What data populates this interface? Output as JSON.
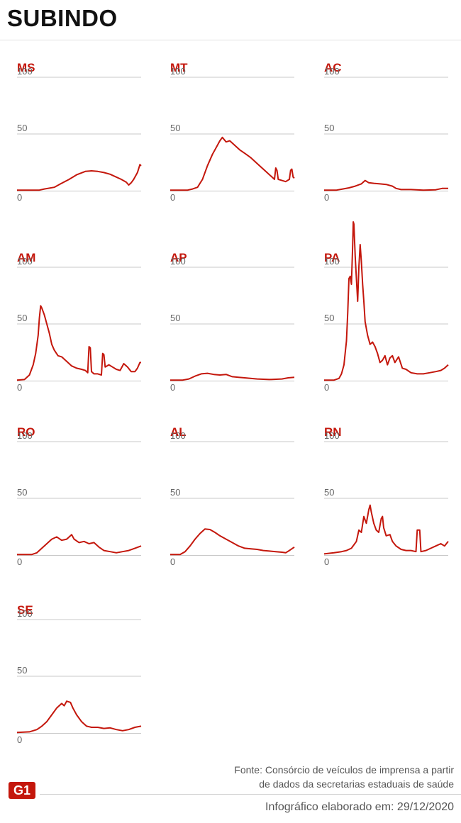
{
  "title": "SUBINDO",
  "footer": {
    "source_line1": "Fonte: Consórcio de veículos de imprensa a partir",
    "source_line2": "de dados da secretarias estaduais de saúde",
    "date": "Infográfico elaborado em: 29/12/2020",
    "logo": "G1"
  },
  "colors": {
    "line": "#c4170c",
    "label": "#c4170c",
    "grid": "#c8c8c8",
    "tick": "#666666"
  },
  "chart_data": [
    {
      "type": "line",
      "title": "MS",
      "ylim": [
        0,
        100
      ],
      "yticks": [
        "0",
        "50",
        "100"
      ],
      "points": [
        [
          0,
          0.5
        ],
        [
          0.1,
          0.5
        ],
        [
          0.18,
          0.5
        ],
        [
          0.22,
          1.5
        ],
        [
          0.3,
          3
        ],
        [
          0.35,
          6
        ],
        [
          0.42,
          10
        ],
        [
          0.48,
          14
        ],
        [
          0.55,
          17
        ],
        [
          0.6,
          17.5
        ],
        [
          0.65,
          17
        ],
        [
          0.7,
          16
        ],
        [
          0.75,
          14.5
        ],
        [
          0.8,
          12
        ],
        [
          0.84,
          10
        ],
        [
          0.88,
          7.5
        ],
        [
          0.9,
          5
        ],
        [
          0.92,
          7
        ],
        [
          0.94,
          10
        ],
        [
          0.97,
          16
        ],
        [
          0.99,
          23
        ],
        [
          1,
          22
        ]
      ]
    },
    {
      "type": "line",
      "title": "MT",
      "ylim": [
        0,
        100
      ],
      "yticks": [
        "0",
        "50",
        "100"
      ],
      "points": [
        [
          0,
          0.5
        ],
        [
          0.14,
          0.5
        ],
        [
          0.18,
          1.5
        ],
        [
          0.22,
          3
        ],
        [
          0.26,
          10
        ],
        [
          0.3,
          22
        ],
        [
          0.34,
          32
        ],
        [
          0.37,
          38
        ],
        [
          0.4,
          44
        ],
        [
          0.42,
          47
        ],
        [
          0.45,
          43
        ],
        [
          0.48,
          44
        ],
        [
          0.52,
          40
        ],
        [
          0.56,
          36
        ],
        [
          0.6,
          33
        ],
        [
          0.65,
          29
        ],
        [
          0.7,
          24
        ],
        [
          0.74,
          20
        ],
        [
          0.78,
          16
        ],
        [
          0.82,
          12
        ],
        [
          0.84,
          10
        ],
        [
          0.85,
          20
        ],
        [
          0.86,
          18
        ],
        [
          0.87,
          10
        ],
        [
          0.9,
          9
        ],
        [
          0.93,
          8
        ],
        [
          0.96,
          10
        ],
        [
          0.97,
          18
        ],
        [
          0.98,
          19
        ],
        [
          0.99,
          12
        ],
        [
          1,
          11
        ]
      ]
    },
    {
      "type": "line",
      "title": "AC",
      "ylim": [
        0,
        100
      ],
      "yticks": [
        "0",
        "50",
        "100"
      ],
      "points": [
        [
          0,
          0.5
        ],
        [
          0.1,
          0.5
        ],
        [
          0.15,
          1.5
        ],
        [
          0.2,
          2.5
        ],
        [
          0.25,
          4
        ],
        [
          0.3,
          6
        ],
        [
          0.33,
          9
        ],
        [
          0.36,
          7
        ],
        [
          0.4,
          6.5
        ],
        [
          0.45,
          6
        ],
        [
          0.5,
          5.5
        ],
        [
          0.55,
          4
        ],
        [
          0.58,
          2
        ],
        [
          0.62,
          1
        ],
        [
          0.7,
          1
        ],
        [
          0.8,
          0.5
        ],
        [
          0.9,
          0.8
        ],
        [
          0.95,
          2
        ],
        [
          1,
          2
        ]
      ]
    },
    {
      "type": "line",
      "title": "AM",
      "ylim": [
        0,
        100
      ],
      "yticks": [
        "0",
        "50",
        "100"
      ],
      "points": [
        [
          0,
          0.5
        ],
        [
          0.06,
          1
        ],
        [
          0.1,
          5
        ],
        [
          0.13,
          14
        ],
        [
          0.15,
          24
        ],
        [
          0.17,
          40
        ],
        [
          0.18,
          55
        ],
        [
          0.19,
          66
        ],
        [
          0.2,
          64
        ],
        [
          0.22,
          58
        ],
        [
          0.24,
          50
        ],
        [
          0.26,
          42
        ],
        [
          0.28,
          32
        ],
        [
          0.3,
          27
        ],
        [
          0.33,
          22
        ],
        [
          0.36,
          21
        ],
        [
          0.4,
          17
        ],
        [
          0.44,
          13
        ],
        [
          0.48,
          11
        ],
        [
          0.52,
          10
        ],
        [
          0.55,
          9
        ],
        [
          0.57,
          7
        ],
        [
          0.58,
          30
        ],
        [
          0.59,
          29
        ],
        [
          0.6,
          8
        ],
        [
          0.62,
          6
        ],
        [
          0.65,
          6
        ],
        [
          0.68,
          5
        ],
        [
          0.69,
          24
        ],
        [
          0.7,
          23
        ],
        [
          0.71,
          12
        ],
        [
          0.74,
          14
        ],
        [
          0.77,
          12
        ],
        [
          0.8,
          10
        ],
        [
          0.83,
          9
        ],
        [
          0.86,
          15
        ],
        [
          0.89,
          12
        ],
        [
          0.92,
          8
        ],
        [
          0.95,
          8
        ],
        [
          0.97,
          11
        ],
        [
          0.99,
          16
        ],
        [
          1,
          16
        ]
      ]
    },
    {
      "type": "line",
      "title": "AP",
      "ylim": [
        0,
        100
      ],
      "yticks": [
        "0",
        "50",
        "100"
      ],
      "points": [
        [
          0,
          0.5
        ],
        [
          0.1,
          0.5
        ],
        [
          0.15,
          1.5
        ],
        [
          0.2,
          4
        ],
        [
          0.25,
          6
        ],
        [
          0.3,
          6.5
        ],
        [
          0.35,
          5.5
        ],
        [
          0.4,
          5
        ],
        [
          0.45,
          5.5
        ],
        [
          0.5,
          3.5
        ],
        [
          0.55,
          3
        ],
        [
          0.6,
          2.5
        ],
        [
          0.7,
          1.5
        ],
        [
          0.8,
          1
        ],
        [
          0.9,
          1.5
        ],
        [
          0.95,
          2.5
        ],
        [
          1,
          3
        ]
      ]
    },
    {
      "type": "line",
      "title": "PA",
      "ylim": [
        0,
        100
      ],
      "yticks": [
        "0",
        "50",
        "100"
      ],
      "points": [
        [
          0,
          0.5
        ],
        [
          0.08,
          0.5
        ],
        [
          0.12,
          2
        ],
        [
          0.14,
          6
        ],
        [
          0.16,
          14
        ],
        [
          0.17,
          25
        ],
        [
          0.18,
          35
        ],
        [
          0.19,
          60
        ],
        [
          0.2,
          90
        ],
        [
          0.21,
          92
        ],
        [
          0.22,
          85
        ],
        [
          0.23,
          120
        ],
        [
          0.235,
          140
        ],
        [
          0.24,
          138
        ],
        [
          0.25,
          110
        ],
        [
          0.26,
          90
        ],
        [
          0.27,
          70
        ],
        [
          0.28,
          100
        ],
        [
          0.29,
          120
        ],
        [
          0.3,
          105
        ],
        [
          0.31,
          85
        ],
        [
          0.32,
          70
        ],
        [
          0.33,
          52
        ],
        [
          0.35,
          40
        ],
        [
          0.37,
          32
        ],
        [
          0.39,
          34
        ],
        [
          0.41,
          30
        ],
        [
          0.43,
          24
        ],
        [
          0.45,
          16
        ],
        [
          0.47,
          18
        ],
        [
          0.49,
          22
        ],
        [
          0.51,
          14
        ],
        [
          0.53,
          20
        ],
        [
          0.55,
          22
        ],
        [
          0.57,
          16
        ],
        [
          0.6,
          21
        ],
        [
          0.63,
          11
        ],
        [
          0.66,
          10
        ],
        [
          0.7,
          7
        ],
        [
          0.75,
          6
        ],
        [
          0.8,
          6
        ],
        [
          0.85,
          7
        ],
        [
          0.9,
          8
        ],
        [
          0.94,
          9
        ],
        [
          0.97,
          11
        ],
        [
          1,
          14
        ]
      ]
    },
    {
      "type": "line",
      "title": "RO",
      "ylim": [
        0,
        100
      ],
      "yticks": [
        "0",
        "50",
        "100"
      ],
      "points": [
        [
          0,
          0.5
        ],
        [
          0.12,
          0.5
        ],
        [
          0.16,
          2
        ],
        [
          0.2,
          6
        ],
        [
          0.24,
          10
        ],
        [
          0.28,
          14
        ],
        [
          0.32,
          16
        ],
        [
          0.36,
          13
        ],
        [
          0.4,
          14
        ],
        [
          0.44,
          18
        ],
        [
          0.46,
          14
        ],
        [
          0.5,
          11
        ],
        [
          0.54,
          12
        ],
        [
          0.58,
          10
        ],
        [
          0.62,
          11
        ],
        [
          0.66,
          7
        ],
        [
          0.7,
          4
        ],
        [
          0.75,
          3
        ],
        [
          0.8,
          2
        ],
        [
          0.85,
          3
        ],
        [
          0.9,
          4
        ],
        [
          0.95,
          6
        ],
        [
          1,
          8
        ]
      ]
    },
    {
      "type": "line",
      "title": "AL",
      "ylim": [
        0,
        100
      ],
      "yticks": [
        "0",
        "50",
        "100"
      ],
      "points": [
        [
          0,
          0.5
        ],
        [
          0.08,
          0.5
        ],
        [
          0.12,
          3
        ],
        [
          0.16,
          8
        ],
        [
          0.2,
          14
        ],
        [
          0.24,
          19
        ],
        [
          0.28,
          23
        ],
        [
          0.32,
          22.5
        ],
        [
          0.36,
          20
        ],
        [
          0.4,
          17
        ],
        [
          0.45,
          14
        ],
        [
          0.5,
          11
        ],
        [
          0.55,
          8
        ],
        [
          0.6,
          6
        ],
        [
          0.65,
          5.5
        ],
        [
          0.7,
          5
        ],
        [
          0.75,
          4
        ],
        [
          0.8,
          3.5
        ],
        [
          0.85,
          3
        ],
        [
          0.9,
          2.5
        ],
        [
          0.93,
          2
        ],
        [
          0.96,
          4
        ],
        [
          1,
          7
        ]
      ]
    },
    {
      "type": "line",
      "title": "RN",
      "ylim": [
        0,
        100
      ],
      "yticks": [
        "0",
        "50",
        "100"
      ],
      "points": [
        [
          0,
          1
        ],
        [
          0.08,
          2
        ],
        [
          0.14,
          3
        ],
        [
          0.18,
          4
        ],
        [
          0.22,
          6
        ],
        [
          0.26,
          12
        ],
        [
          0.28,
          22
        ],
        [
          0.3,
          20
        ],
        [
          0.32,
          34
        ],
        [
          0.34,
          28
        ],
        [
          0.35,
          34
        ],
        [
          0.36,
          40
        ],
        [
          0.37,
          44
        ],
        [
          0.38,
          38
        ],
        [
          0.4,
          28
        ],
        [
          0.42,
          22
        ],
        [
          0.44,
          20
        ],
        [
          0.46,
          32
        ],
        [
          0.47,
          34
        ],
        [
          0.48,
          24
        ],
        [
          0.5,
          17
        ],
        [
          0.53,
          18
        ],
        [
          0.55,
          12
        ],
        [
          0.58,
          8
        ],
        [
          0.62,
          5
        ],
        [
          0.66,
          4
        ],
        [
          0.7,
          4
        ],
        [
          0.74,
          3
        ],
        [
          0.75,
          22
        ],
        [
          0.77,
          22
        ],
        [
          0.78,
          3
        ],
        [
          0.82,
          4
        ],
        [
          0.86,
          6
        ],
        [
          0.9,
          8
        ],
        [
          0.94,
          10
        ],
        [
          0.97,
          8
        ],
        [
          1,
          12
        ]
      ]
    },
    {
      "type": "line",
      "title": "SE",
      "ylim": [
        0,
        100
      ],
      "yticks": [
        "0",
        "50",
        "100"
      ],
      "points": [
        [
          0,
          0.5
        ],
        [
          0.1,
          1
        ],
        [
          0.16,
          3
        ],
        [
          0.2,
          6
        ],
        [
          0.24,
          10
        ],
        [
          0.28,
          16
        ],
        [
          0.32,
          22
        ],
        [
          0.36,
          26
        ],
        [
          0.38,
          24
        ],
        [
          0.4,
          28
        ],
        [
          0.43,
          27
        ],
        [
          0.45,
          22
        ],
        [
          0.48,
          16
        ],
        [
          0.52,
          10
        ],
        [
          0.56,
          6
        ],
        [
          0.6,
          5
        ],
        [
          0.65,
          5
        ],
        [
          0.7,
          4
        ],
        [
          0.75,
          4.5
        ],
        [
          0.8,
          3
        ],
        [
          0.85,
          2
        ],
        [
          0.9,
          3
        ],
        [
          0.95,
          5
        ],
        [
          1,
          6
        ]
      ]
    }
  ]
}
